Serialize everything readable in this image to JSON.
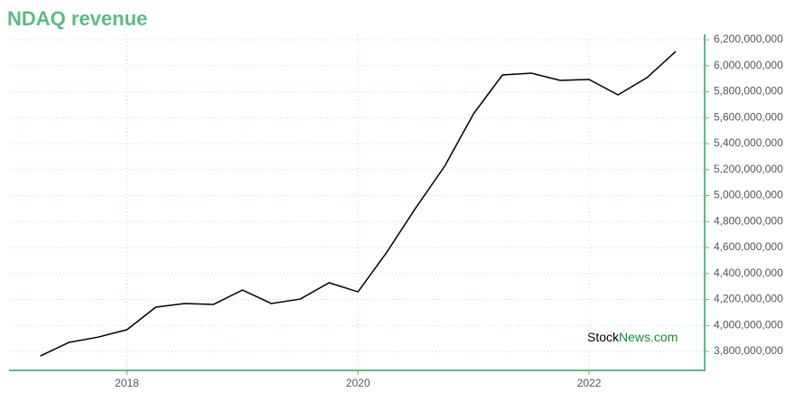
{
  "chart_data": {
    "type": "line",
    "title": "NDAQ revenue",
    "x": [
      2017.25,
      2017.5,
      2017.75,
      2018.0,
      2018.25,
      2018.5,
      2018.75,
      2019.0,
      2019.25,
      2019.5,
      2019.75,
      2020.0,
      2020.25,
      2020.5,
      2020.75,
      2021.0,
      2021.25,
      2021.5,
      2021.75,
      2022.0,
      2022.25,
      2022.5,
      2022.75
    ],
    "series": [
      {
        "name": "NDAQ revenue",
        "color": "#000000",
        "values": [
          3765000000,
          3870000000,
          3910000000,
          3967000000,
          4141000000,
          4169000000,
          4162000000,
          4273000000,
          4169000000,
          4203000000,
          4329000000,
          4259000000,
          4565000000,
          4906000000,
          5226000000,
          5630000000,
          5929000000,
          5943000000,
          5887000000,
          5894000000,
          5776000000,
          5908000000,
          6110000000
        ]
      }
    ],
    "xlim": [
      2016.98,
      2023.0
    ],
    "xticks": [
      2018,
      2020,
      2022
    ],
    "ylim": [
      3654000000,
      6242000000
    ],
    "yticks": [
      {
        "value": 3800000000,
        "label": "3,800,000,000"
      },
      {
        "value": 4000000000,
        "label": "4,000,000,000"
      },
      {
        "value": 4200000000,
        "label": "4,200,000,000"
      },
      {
        "value": 4400000000,
        "label": "4,400,000,000"
      },
      {
        "value": 4600000000,
        "label": "4,600,000,000"
      },
      {
        "value": 4800000000,
        "label": "4,800,000,000"
      },
      {
        "value": 5000000000,
        "label": "5,000,000,000"
      },
      {
        "value": 5200000000,
        "label": "5,200,000,000"
      },
      {
        "value": 5400000000,
        "label": "5,400,000,000"
      },
      {
        "value": 5600000000,
        "label": "5,600,000,000"
      },
      {
        "value": 5800000000,
        "label": "5,800,000,000"
      },
      {
        "value": 6000000000,
        "label": "6,000,000,000"
      },
      {
        "value": 6200000000,
        "label": "6,200,000,000"
      }
    ],
    "grid": true,
    "axis_color": "#5dbb84",
    "watermark": {
      "brand": "Stock",
      "domain": "News.com"
    }
  }
}
